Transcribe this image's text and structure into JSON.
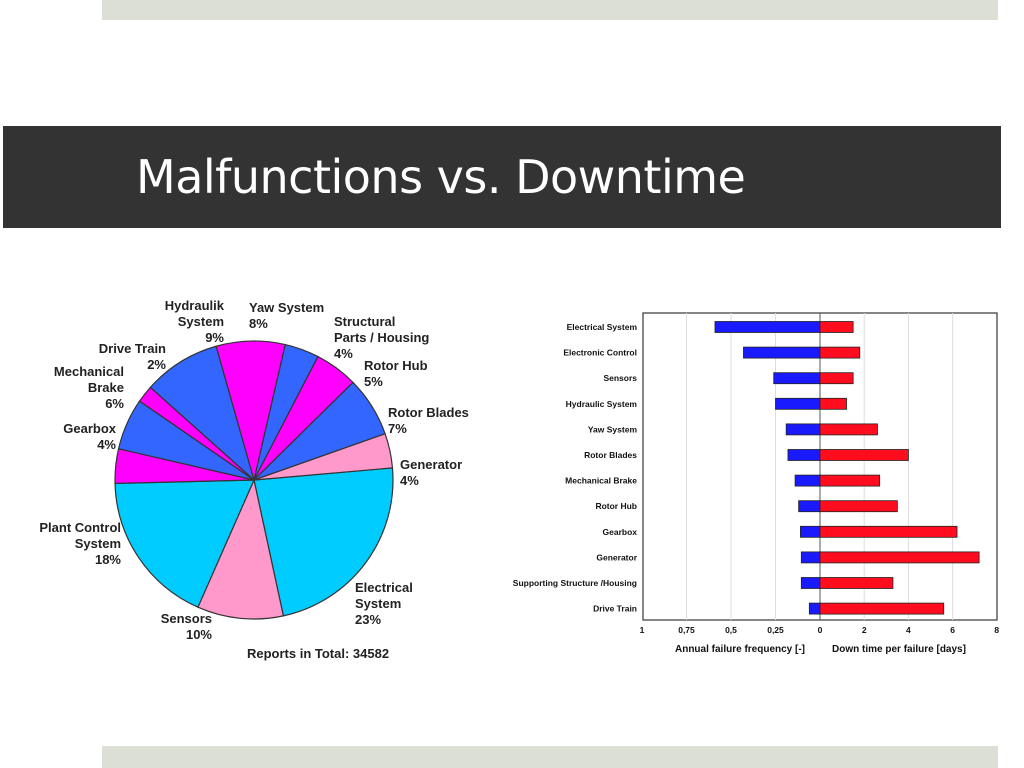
{
  "slide": {
    "title": "Malfunctions vs. Downtime"
  },
  "chart_data": [
    {
      "type": "pie",
      "title": "",
      "footnote": "Reports in Total: 34582",
      "categories": [
        "Electrical System",
        "Sensors",
        "Plant Control System",
        "Gearbox",
        "Mechanical Brake",
        "Drive Train",
        "Hydraulik System",
        "Yaw System",
        "Structural Parts / Housing",
        "Rotor Hub",
        "Rotor Blades",
        "Generator"
      ],
      "values": [
        23,
        10,
        18,
        4,
        6,
        2,
        9,
        8,
        4,
        5,
        7,
        4
      ],
      "labels": [
        [
          "Electrical",
          "System",
          "23%"
        ],
        [
          "Sensors",
          "10%"
        ],
        [
          "Plant Control",
          "System",
          "18%"
        ],
        [
          "Gearbox",
          "4%"
        ],
        [
          "Mechanical",
          "Brake",
          "6%"
        ],
        [
          "Drive Train",
          "2%"
        ],
        [
          "Hydraulik",
          "System",
          "9%"
        ],
        [
          "Yaw System",
          "8%"
        ],
        [
          "Structural",
          "Parts / Housing",
          "4%"
        ],
        [
          "Rotor Hub",
          "5%"
        ],
        [
          "Rotor Blades",
          "7%"
        ],
        [
          "Generator",
          "4%"
        ]
      ],
      "colors": [
        "#00ccff",
        "#ff99cc",
        "#00ccff",
        "#ff00ff",
        "#3366ff",
        "#ff00ff",
        "#3366ff",
        "#ff00ff",
        "#3366ff",
        "#ff00ff",
        "#3366ff",
        "#ff99cc"
      ]
    },
    {
      "type": "bar",
      "orientation": "horizontal-diverging",
      "categories": [
        "Electrical System",
        "Electronic Control",
        "Sensors",
        "Hydraulic System",
        "Yaw System",
        "Rotor Blades",
        "Mechanical Brake",
        "Rotor Hub",
        "Gearbox",
        "Generator",
        "Supporting Structure /Housing",
        "Drive Train"
      ],
      "series": [
        {
          "name": "Annual failure frequency [-]",
          "color": "#1a1aff",
          "values": [
            0.59,
            0.43,
            0.26,
            0.25,
            0.19,
            0.18,
            0.14,
            0.12,
            0.11,
            0.105,
            0.105,
            0.06
          ]
        },
        {
          "name": "Down time per failure [days]",
          "color": "#ff0d1f",
          "values": [
            1.5,
            1.8,
            1.5,
            1.2,
            2.6,
            4.0,
            2.7,
            3.5,
            6.2,
            7.2,
            3.3,
            5.6
          ]
        }
      ],
      "left_axis": {
        "label": "Annual failure frequency [-]",
        "range": [
          1,
          0
        ],
        "ticks": [
          "1",
          "0,75",
          "0,5",
          "0,25",
          "0"
        ]
      },
      "right_axis": {
        "label": "Down time per failure [days]",
        "range": [
          0,
          8
        ],
        "ticks": [
          "2",
          "4",
          "6",
          "8"
        ]
      },
      "grid": true
    }
  ]
}
